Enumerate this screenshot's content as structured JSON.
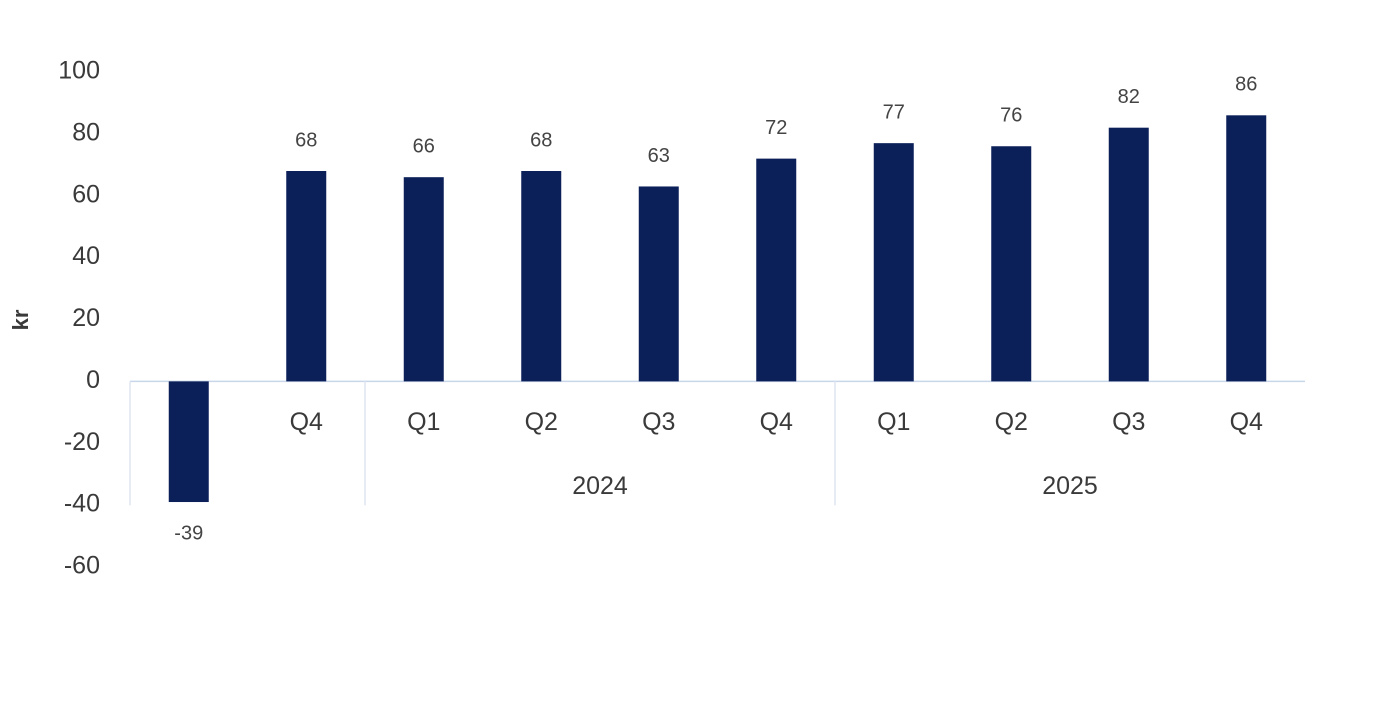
{
  "chart_data": {
    "type": "bar",
    "y_label": "kr",
    "categories": [
      null,
      "Q4",
      "Q1",
      "Q2",
      "Q3",
      "Q4",
      "Q1",
      "Q2",
      "Q3",
      "Q4"
    ],
    "x_groups": [
      {
        "label": null,
        "span": 2
      },
      {
        "label": "2024",
        "span": 4
      },
      {
        "label": "2025",
        "span": 4
      }
    ],
    "values": [
      -39,
      68,
      66,
      68,
      63,
      72,
      77,
      76,
      82,
      86
    ],
    "color": "#0b1f58",
    "ylim": [
      -60,
      100
    ],
    "yticks": [
      -60,
      -40,
      -20,
      0,
      20,
      40,
      60,
      80,
      100
    ],
    "grid": false
  }
}
